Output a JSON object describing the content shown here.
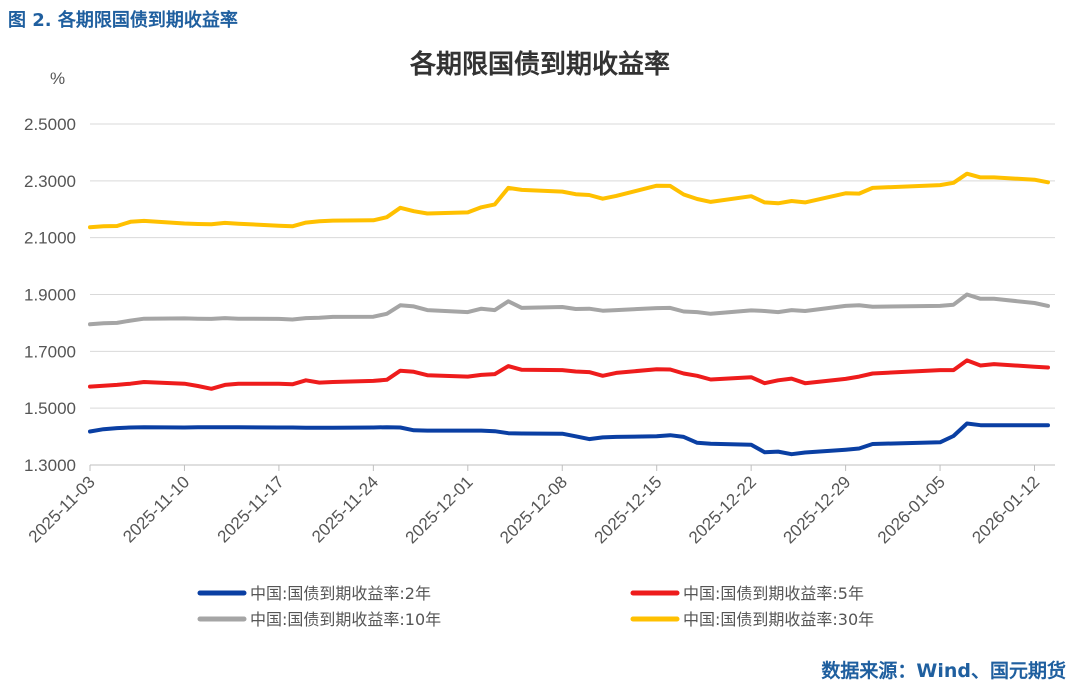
{
  "caption": "图 2. 各期限国债到期收益率",
  "source": "数据来源：Wind、国元期货",
  "chart_data": {
    "type": "line",
    "title": "各期限国债到期收益率",
    "ylabel": "%",
    "ylim": [
      1.3,
      2.5
    ],
    "yticks": [
      "1.3000",
      "1.5000",
      "1.7000",
      "1.9000",
      "2.1000",
      "2.3000",
      "2.5000"
    ],
    "xticks": [
      "2025-11-03",
      "2025-11-10",
      "2025-11-17",
      "2025-11-24",
      "2025-12-01",
      "2025-12-08",
      "2025-12-15",
      "2025-12-22",
      "2025-12-29",
      "2026-01-05",
      "2026-01-12"
    ],
    "x": [
      "2025-11-03",
      "2025-11-04",
      "2025-11-05",
      "2025-11-06",
      "2025-11-07",
      "2025-11-10",
      "2025-11-11",
      "2025-11-12",
      "2025-11-13",
      "2025-11-14",
      "2025-11-17",
      "2025-11-18",
      "2025-11-19",
      "2025-11-20",
      "2025-11-21",
      "2025-11-24",
      "2025-11-25",
      "2025-11-26",
      "2025-11-27",
      "2025-11-28",
      "2025-12-01",
      "2025-12-02",
      "2025-12-03",
      "2025-12-04",
      "2025-12-05",
      "2025-12-08",
      "2025-12-09",
      "2025-12-10",
      "2025-12-11",
      "2025-12-12",
      "2025-12-15",
      "2025-12-16",
      "2025-12-17",
      "2025-12-18",
      "2025-12-19",
      "2025-12-22",
      "2025-12-23",
      "2025-12-24",
      "2025-12-25",
      "2025-12-26",
      "2025-12-29",
      "2025-12-30",
      "2025-12-31",
      "2026-01-05",
      "2026-01-06",
      "2026-01-07",
      "2026-01-08",
      "2026-01-09",
      "2026-01-12",
      "2026-01-13"
    ],
    "grid": true,
    "legend_position": "bottom",
    "series": [
      {
        "name": "中国:国债到期收益率:2年",
        "color": "#0a3fa3",
        "values": [
          1.418,
          1.426,
          1.43,
          1.432,
          1.433,
          1.432,
          1.433,
          1.433,
          1.433,
          1.433,
          1.432,
          1.432,
          1.431,
          1.431,
          1.431,
          1.432,
          1.433,
          1.432,
          1.422,
          1.421,
          1.421,
          1.421,
          1.419,
          1.412,
          1.411,
          1.41,
          1.401,
          1.391,
          1.397,
          1.399,
          1.401,
          1.405,
          1.399,
          1.378,
          1.375,
          1.371,
          1.345,
          1.347,
          1.338,
          1.344,
          1.354,
          1.358,
          1.374,
          1.38,
          1.402,
          1.446,
          1.44,
          1.44,
          1.44,
          1.44
        ]
      },
      {
        "name": "中国:国债到期收益率:5年",
        "color": "#ee1c1c",
        "values": [
          1.576,
          1.579,
          1.582,
          1.586,
          1.592,
          1.586,
          1.578,
          1.568,
          1.582,
          1.586,
          1.586,
          1.584,
          1.598,
          1.59,
          1.592,
          1.596,
          1.6,
          1.632,
          1.628,
          1.616,
          1.611,
          1.617,
          1.62,
          1.648,
          1.635,
          1.634,
          1.629,
          1.627,
          1.614,
          1.624,
          1.637,
          1.636,
          1.622,
          1.614,
          1.601,
          1.609,
          1.588,
          1.598,
          1.604,
          1.588,
          1.603,
          1.611,
          1.622,
          1.634,
          1.634,
          1.668,
          1.65,
          1.655,
          1.646,
          1.643
        ]
      },
      {
        "name": "中国:国债到期收益率:10年",
        "color": "#a5a5a5",
        "values": [
          1.795,
          1.799,
          1.8,
          1.808,
          1.815,
          1.816,
          1.815,
          1.814,
          1.817,
          1.815,
          1.814,
          1.812,
          1.817,
          1.818,
          1.821,
          1.822,
          1.832,
          1.862,
          1.858,
          1.845,
          1.838,
          1.85,
          1.845,
          1.876,
          1.853,
          1.856,
          1.849,
          1.85,
          1.843,
          1.845,
          1.852,
          1.853,
          1.84,
          1.838,
          1.832,
          1.844,
          1.842,
          1.838,
          1.845,
          1.842,
          1.86,
          1.862,
          1.857,
          1.86,
          1.864,
          1.9,
          1.885,
          1.885,
          1.87,
          1.86
        ]
      },
      {
        "name": "中国:国债到期收益率:30年",
        "color": "#ffc000",
        "values": [
          2.137,
          2.14,
          2.141,
          2.156,
          2.159,
          2.15,
          2.148,
          2.147,
          2.152,
          2.149,
          2.142,
          2.14,
          2.153,
          2.158,
          2.16,
          2.161,
          2.172,
          2.205,
          2.193,
          2.185,
          2.189,
          2.207,
          2.217,
          2.275,
          2.268,
          2.262,
          2.253,
          2.25,
          2.237,
          2.247,
          2.283,
          2.282,
          2.252,
          2.236,
          2.226,
          2.246,
          2.224,
          2.221,
          2.229,
          2.224,
          2.256,
          2.255,
          2.275,
          2.285,
          2.293,
          2.325,
          2.312,
          2.312,
          2.304,
          2.295
        ]
      }
    ]
  }
}
